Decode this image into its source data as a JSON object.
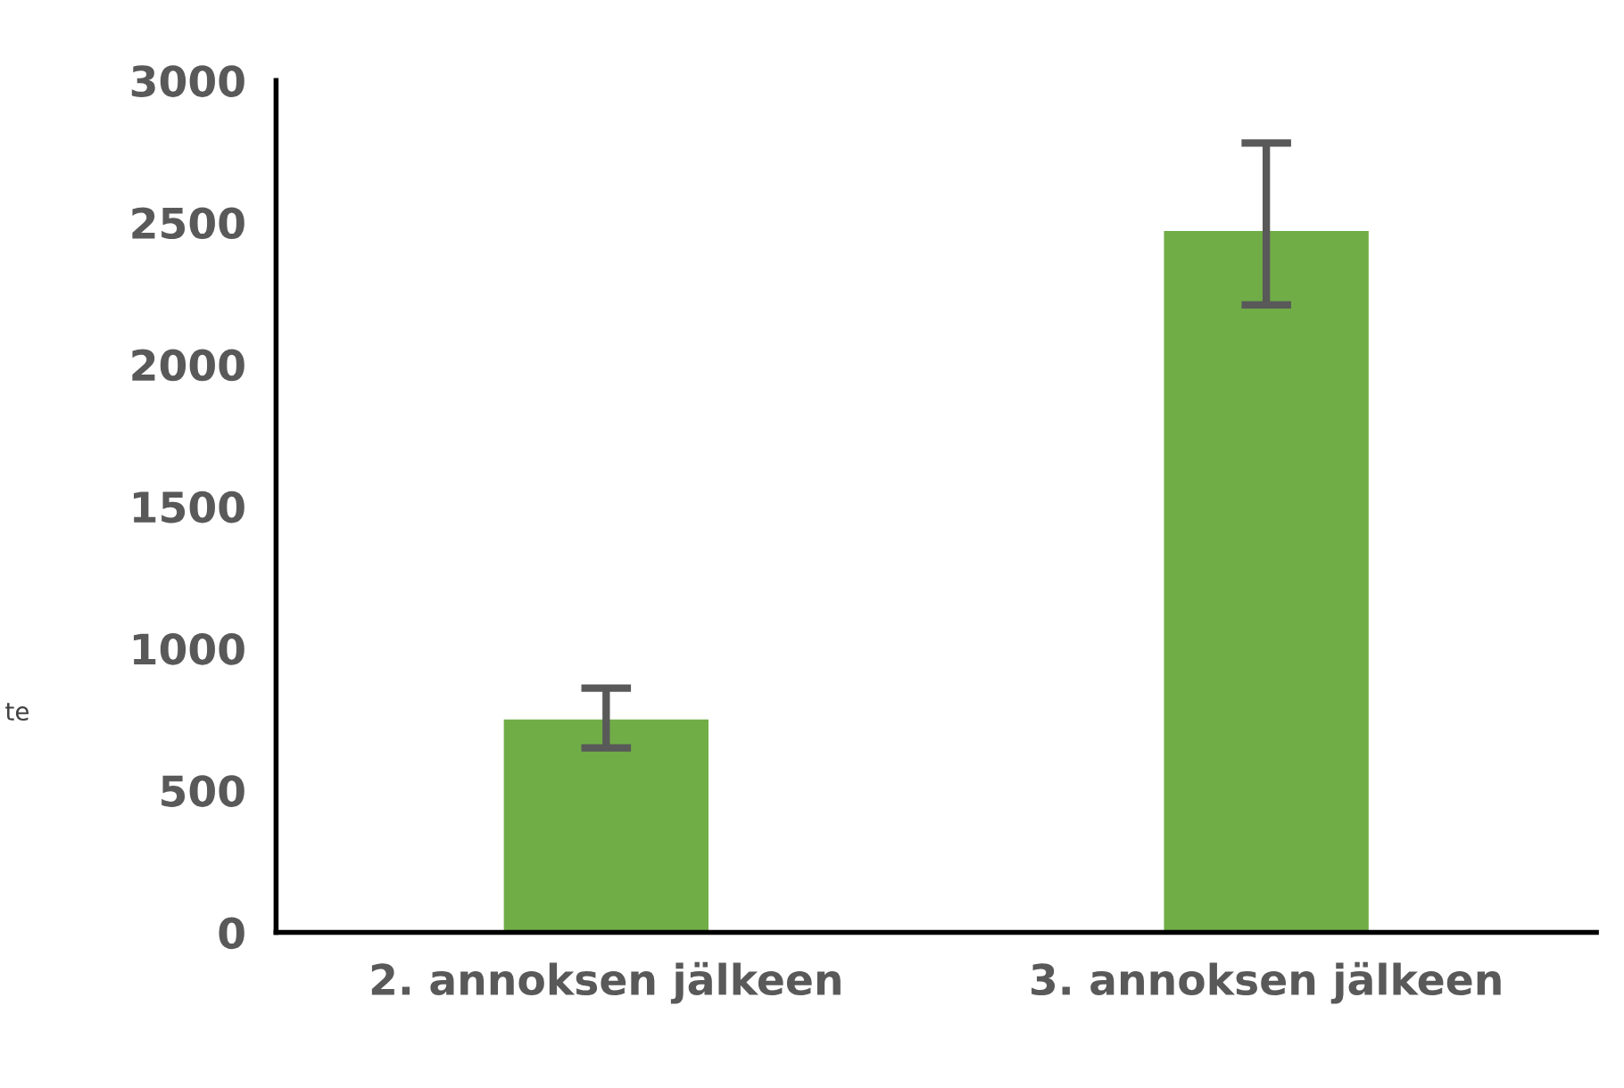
{
  "chart_data": {
    "type": "bar",
    "ylabel": "te",
    "categories": [
      "2. annoksen jälkeen",
      "3. annoksen jälkeen"
    ],
    "values": [
      750,
      2470
    ],
    "color": "#70ad47",
    "errors": [
      [
        650,
        860
      ],
      [
        2210,
        2780
      ]
    ],
    "ylim": [
      0,
      3000
    ],
    "yticks": [
      0,
      500,
      1000,
      1500,
      2000,
      2500,
      3000
    ],
    "grid": false,
    "legend": false
  }
}
